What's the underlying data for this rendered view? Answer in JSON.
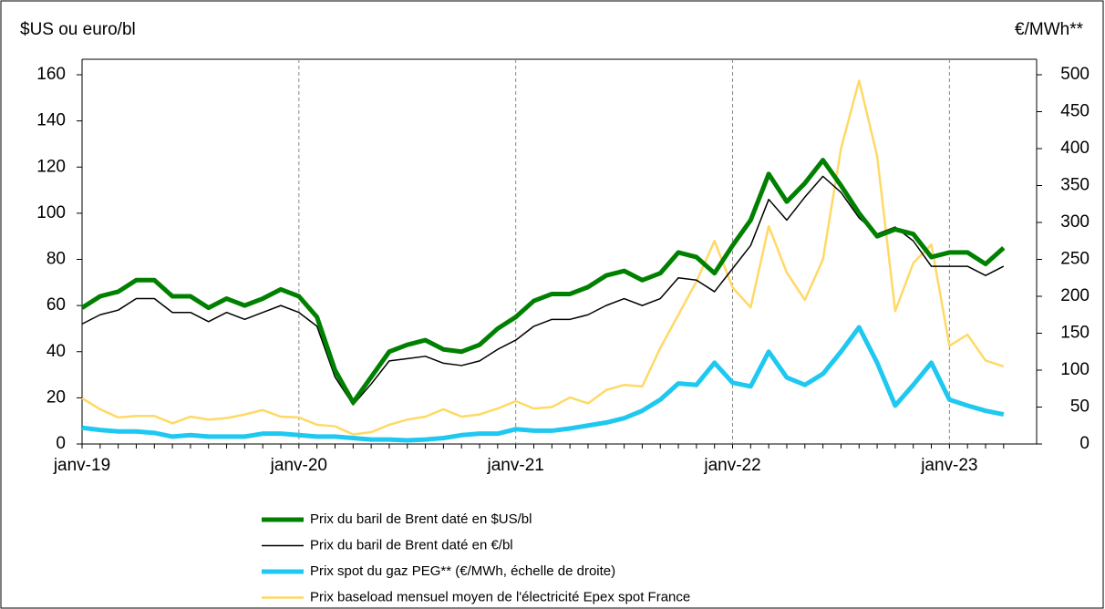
{
  "chart_data": {
    "type": "line",
    "y_label": "$US ou euro/bl",
    "y2_label": "€/MWh**",
    "categories": [
      "janv-19",
      null,
      null,
      null,
      null,
      null,
      null,
      null,
      null,
      null,
      null,
      null,
      "janv-20",
      null,
      null,
      null,
      null,
      null,
      null,
      null,
      null,
      null,
      null,
      null,
      "janv-21",
      null,
      null,
      null,
      null,
      null,
      null,
      null,
      null,
      null,
      null,
      null,
      "janv-22",
      null,
      null,
      null,
      null,
      null,
      null,
      null,
      null,
      null,
      null,
      null,
      "janv-23",
      null,
      null,
      null
    ],
    "series": [
      {
        "name": "Prix du baril de Brent daté en $US/bl",
        "color": "#008000",
        "width": 5,
        "values": [
          59,
          64,
          66,
          71,
          71,
          64,
          64,
          59,
          63,
          60,
          63,
          67,
          64,
          55,
          32,
          18,
          29,
          40,
          43,
          45,
          41,
          40,
          43,
          50,
          55,
          62,
          65,
          65,
          68,
          73,
          75,
          71,
          74,
          83,
          81,
          74,
          86,
          97,
          117,
          105,
          113,
          123,
          112,
          100,
          90,
          93,
          91,
          81,
          83,
          83,
          78,
          85
        ]
      },
      {
        "name": "Prix du baril de Brent daté en €/bl",
        "color": "#000000",
        "width": 1.5,
        "values": [
          52,
          56,
          58,
          63,
          63,
          57,
          57,
          53,
          57,
          54,
          57,
          60,
          57,
          51,
          29,
          17,
          26,
          36,
          37,
          38,
          35,
          34,
          36,
          41,
          45,
          51,
          54,
          54,
          56,
          60,
          63,
          60,
          63,
          72,
          71,
          66,
          76,
          86,
          106,
          97,
          107,
          116,
          109,
          98,
          91,
          94,
          88,
          77,
          77,
          77,
          73,
          77
        ]
      },
      {
        "name": "Prix spot du gaz PEG**  (€/MWh, échelle de droite)",
        "color": "#1ec8f0",
        "width": 5,
        "axis": "y2",
        "values": [
          22,
          19,
          17,
          17,
          15,
          10,
          12,
          10,
          10,
          10,
          14,
          14,
          12,
          10,
          10,
          8,
          6,
          6,
          5,
          6,
          8,
          12,
          14,
          14,
          20,
          18,
          18,
          21,
          25,
          29,
          35,
          45,
          60,
          82,
          80,
          110,
          83,
          78,
          125,
          90,
          80,
          95,
          125,
          158,
          110,
          52,
          80,
          110,
          60,
          52,
          45,
          40
        ]
      },
      {
        "name": "Prix baseload mensuel moyen de l'électricité Epex spot France",
        "color": "#ffd966",
        "width": 2.5,
        "axis": "y2",
        "values": [
          62,
          47,
          36,
          38,
          38,
          28,
          37,
          33,
          35,
          40,
          46,
          37,
          36,
          26,
          24,
          13,
          16,
          26,
          33,
          37,
          47,
          37,
          40,
          48,
          58,
          48,
          50,
          63,
          55,
          73,
          80,
          78,
          130,
          175,
          220,
          275,
          212,
          185,
          295,
          232,
          195,
          250,
          400,
          492,
          390,
          180,
          245,
          270,
          133,
          148,
          113,
          105
        ]
      }
    ],
    "ylim": [
      0,
      160
    ],
    "yticks": [
      0,
      20,
      40,
      60,
      80,
      100,
      120,
      140,
      160
    ],
    "y2lim": [
      0,
      500
    ],
    "y2ticks": [
      0,
      50,
      100,
      150,
      200,
      250,
      300,
      350,
      400,
      450,
      500
    ],
    "grid": true
  }
}
